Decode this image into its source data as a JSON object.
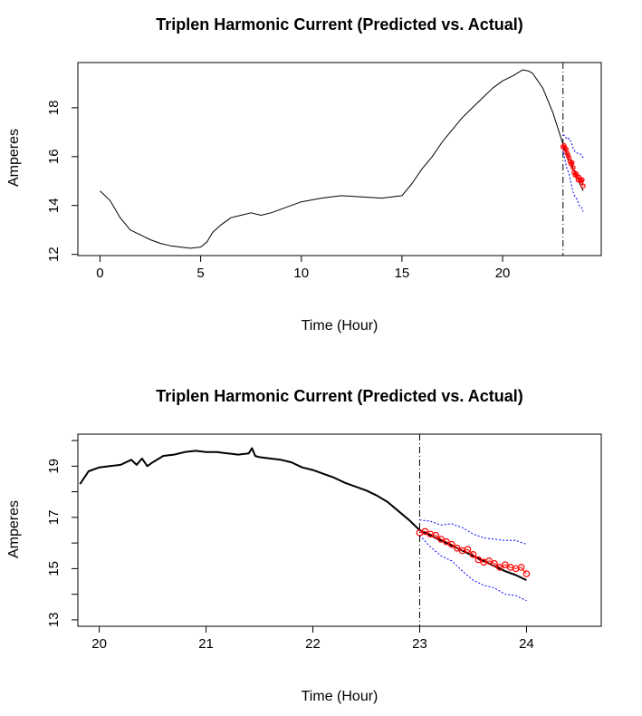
{
  "chart_data": [
    {
      "type": "line",
      "title": "Triplen Harmonic Current (Predicted vs. Actual)",
      "xlabel": "Time (Hour)",
      "ylabel": "Amperes",
      "xlim": [
        -1.1,
        24.9
      ],
      "ylim": [
        11.95,
        19.85
      ],
      "xticks": [
        0,
        5,
        10,
        15,
        20
      ],
      "yticks": [
        12,
        14,
        16,
        18
      ],
      "vline_x": 23,
      "grid": false,
      "legend": "none",
      "colors": {
        "actual": "#000000",
        "predicted": "#ff0000",
        "bounds": "#0000ff"
      },
      "series": [
        {
          "role": "actual",
          "style": "solid-thin",
          "x": [
            0,
            0.5,
            1,
            1.5,
            2,
            2.5,
            3,
            3.5,
            4,
            4.5,
            5,
            5.3,
            5.6,
            6,
            6.5,
            7,
            7.5,
            8,
            8.5,
            9,
            9.5,
            10,
            11,
            12,
            13,
            14,
            15,
            15.5,
            16,
            16.5,
            17,
            17.5,
            18,
            18.5,
            19,
            19.5,
            20,
            20.5,
            21,
            21.3,
            21.5,
            22,
            22.5,
            23,
            23.3,
            23.6,
            24
          ],
          "y": [
            14.6,
            14.2,
            13.5,
            13.0,
            12.8,
            12.6,
            12.45,
            12.35,
            12.3,
            12.25,
            12.3,
            12.5,
            12.9,
            13.2,
            13.5,
            13.6,
            13.7,
            13.6,
            13.7,
            13.85,
            14.0,
            14.15,
            14.3,
            14.4,
            14.35,
            14.3,
            14.4,
            14.9,
            15.5,
            16.0,
            16.6,
            17.1,
            17.6,
            18.0,
            18.4,
            18.8,
            19.1,
            19.3,
            19.55,
            19.5,
            19.4,
            18.8,
            17.8,
            16.5,
            15.9,
            15.3,
            14.6
          ]
        },
        {
          "role": "predicted",
          "style": "circles",
          "x": [
            23.0,
            23.05,
            23.1,
            23.15,
            23.2,
            23.25,
            23.3,
            23.35,
            23.4,
            23.45,
            23.5,
            23.55,
            23.6,
            23.65,
            23.7,
            23.75,
            23.8,
            23.85,
            23.9,
            23.95,
            24.0
          ],
          "y": [
            16.4,
            16.45,
            16.35,
            16.3,
            16.15,
            16.05,
            15.95,
            15.8,
            15.7,
            15.75,
            15.55,
            15.35,
            15.25,
            15.3,
            15.2,
            15.05,
            15.15,
            15.05,
            15.0,
            15.05,
            14.8
          ]
        },
        {
          "role": "upper",
          "style": "dotted",
          "x": [
            23.0,
            23.1,
            23.2,
            23.3,
            23.4,
            23.5,
            23.6,
            23.7,
            23.8,
            23.9,
            24.0
          ],
          "y": [
            16.9,
            16.85,
            16.7,
            16.75,
            16.6,
            16.35,
            16.2,
            16.15,
            16.1,
            16.1,
            15.95
          ]
        },
        {
          "role": "lower",
          "style": "dotted",
          "x": [
            23.0,
            23.1,
            23.2,
            23.3,
            23.4,
            23.5,
            23.6,
            23.7,
            23.8,
            23.9,
            24.0
          ],
          "y": [
            16.3,
            15.85,
            15.5,
            15.3,
            14.9,
            14.55,
            14.35,
            14.25,
            14.0,
            13.95,
            13.75
          ]
        }
      ]
    },
    {
      "type": "line",
      "title": "Triplen Harmonic Current (Predicted vs. Actual)",
      "xlabel": "Time (Hour)",
      "ylabel": "Amperes",
      "xlim": [
        19.8,
        24.7
      ],
      "ylim": [
        12.75,
        20.25
      ],
      "xticks": [
        20,
        21,
        22,
        23,
        24
      ],
      "yticks": [
        13,
        15,
        17,
        19
      ],
      "yticks_unlabeled": [
        14,
        16,
        18,
        20
      ],
      "vline_x": 23,
      "grid": false,
      "legend": "none",
      "colors": {
        "actual": "#000000",
        "predicted": "#ff0000",
        "bounds": "#0000ff"
      },
      "series": [
        {
          "role": "actual",
          "style": "solid-thick",
          "x": [
            19.82,
            19.9,
            20.0,
            20.1,
            20.2,
            20.3,
            20.35,
            20.4,
            20.45,
            20.5,
            20.6,
            20.7,
            20.8,
            20.9,
            21.0,
            21.1,
            21.2,
            21.3,
            21.4,
            21.43,
            21.46,
            21.5,
            21.6,
            21.7,
            21.8,
            21.9,
            22.0,
            22.1,
            22.2,
            22.3,
            22.4,
            22.5,
            22.6,
            22.7,
            22.8,
            22.9,
            23.0,
            23.1,
            23.2,
            23.3,
            23.4,
            23.5,
            23.6,
            23.7,
            23.8,
            23.9,
            24.0
          ],
          "y": [
            18.3,
            18.8,
            18.95,
            19.0,
            19.05,
            19.25,
            19.05,
            19.3,
            19.0,
            19.15,
            19.4,
            19.45,
            19.55,
            19.6,
            19.55,
            19.55,
            19.5,
            19.45,
            19.5,
            19.7,
            19.4,
            19.35,
            19.3,
            19.25,
            19.15,
            18.95,
            18.85,
            18.7,
            18.55,
            18.35,
            18.2,
            18.05,
            17.85,
            17.6,
            17.25,
            16.9,
            16.5,
            16.3,
            16.1,
            15.9,
            15.7,
            15.5,
            15.3,
            15.1,
            14.9,
            14.75,
            14.55
          ]
        },
        {
          "role": "predicted",
          "style": "circles",
          "x": [
            23.0,
            23.05,
            23.1,
            23.15,
            23.2,
            23.25,
            23.3,
            23.35,
            23.4,
            23.45,
            23.5,
            23.55,
            23.6,
            23.65,
            23.7,
            23.75,
            23.8,
            23.85,
            23.9,
            23.95,
            24.0
          ],
          "y": [
            16.4,
            16.45,
            16.35,
            16.3,
            16.15,
            16.05,
            15.95,
            15.8,
            15.7,
            15.75,
            15.55,
            15.35,
            15.25,
            15.3,
            15.2,
            15.05,
            15.15,
            15.05,
            15.0,
            15.05,
            14.8
          ]
        },
        {
          "role": "upper",
          "style": "dotted",
          "x": [
            23.0,
            23.1,
            23.2,
            23.3,
            23.4,
            23.5,
            23.6,
            23.7,
            23.8,
            23.9,
            24.0
          ],
          "y": [
            16.9,
            16.85,
            16.7,
            16.75,
            16.6,
            16.35,
            16.2,
            16.15,
            16.1,
            16.1,
            15.95
          ]
        },
        {
          "role": "lower",
          "style": "dotted",
          "x": [
            23.0,
            23.1,
            23.2,
            23.3,
            23.4,
            23.5,
            23.6,
            23.7,
            23.8,
            23.9,
            24.0
          ],
          "y": [
            16.3,
            15.85,
            15.5,
            15.3,
            14.9,
            14.55,
            14.35,
            14.25,
            14.0,
            13.95,
            13.75
          ]
        }
      ]
    }
  ]
}
